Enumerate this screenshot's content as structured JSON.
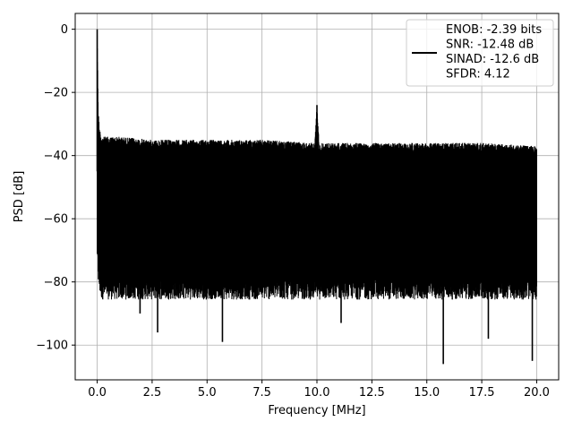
{
  "chart_data": {
    "type": "line",
    "title": "",
    "xlabel": "Frequency [MHz]",
    "ylabel": "PSD [dB]",
    "xlim": [
      -1.0,
      21.0
    ],
    "ylim": [
      -111,
      5
    ],
    "xticks": [
      0.0,
      2.5,
      5.0,
      7.5,
      10.0,
      12.5,
      15.0,
      17.5,
      20.0
    ],
    "xtick_labels": [
      "0.0",
      "2.5",
      "5.0",
      "7.5",
      "10.0",
      "12.5",
      "15.0",
      "17.5",
      "20.0"
    ],
    "yticks": [
      0,
      -20,
      -40,
      -60,
      -80,
      -100
    ],
    "ytick_labels": [
      "0",
      "−20",
      "−40",
      "−60",
      "−80",
      "−100"
    ],
    "grid": true,
    "legend_position": "top-right",
    "legend": [
      "ENOB: -2.39 bits",
      "SNR: -12.48 dB",
      "SINAD: -12.6 dB",
      "SFDR: 4.12"
    ],
    "line_color": "#000000",
    "series": [
      {
        "x": [
          0.0,
          0.05,
          0.1,
          0.2,
          1.0,
          2.5,
          5.0,
          7.5,
          9.9,
          10.0,
          10.1,
          12.5,
          15.0,
          17.5,
          20.0
        ],
        "noise_upper": [
          0.0,
          -25,
          -31,
          -34,
          -34,
          -35,
          -35,
          -35,
          -36,
          -24,
          -36,
          -36,
          -36,
          -36,
          -37
        ],
        "noise_typical_low": [
          -68,
          -75,
          -78,
          -80,
          -80,
          -80,
          -80,
          -80,
          -80,
          -80,
          -80,
          -80,
          -80,
          -80,
          -80
        ],
        "spikes": [
          {
            "x": 0.0,
            "y": 0.0
          },
          {
            "x": 10.0,
            "y": -24.0
          }
        ],
        "deep_minima": [
          {
            "x": 1.95,
            "y": -90
          },
          {
            "x": 2.75,
            "y": -96
          },
          {
            "x": 5.7,
            "y": -99
          },
          {
            "x": 11.1,
            "y": -93
          },
          {
            "x": 15.75,
            "y": -106
          },
          {
            "x": 17.8,
            "y": -98
          },
          {
            "x": 19.8,
            "y": -105
          }
        ]
      }
    ]
  }
}
